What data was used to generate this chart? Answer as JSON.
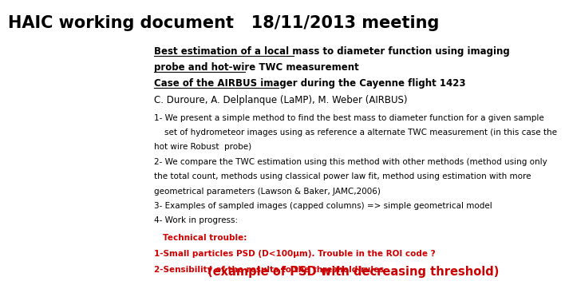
{
  "title": "HAIC working document   18/11/2013 meeting",
  "title_fontsize": 15,
  "title_weight": "bold",
  "bg_color": "#ffffff",
  "subtitle1_line1": "Best estimation of a local mass to diameter function using imaging",
  "subtitle1_line2": "probe and hot-wire TWC measurement",
  "subtitle2": "Case of the AIRBUS imager during the Cayenne flight 1423",
  "authors": "C. Duroure, A. Delplanque (LaMP), M. Weber (AIRBUS)",
  "body": [
    "1- We present a simple method to find the best mass to diameter function for a given sample",
    "    set of hydrometeor images using as reference a alternate TWC measurement (in this case the",
    "hot wire Robust  probe)",
    "2- We compare the TWC estimation using this method with other methods (method using only",
    "the total count, methods using classical power law fit, method using estimation with more",
    "geometrical parameters (Lawson & Baker, JAMC,2006)",
    "3- Examples of sampled images (capped columns) => simple geometrical model",
    "4- Work in progress:"
  ],
  "red_title": "Technical trouble:",
  "red_line1": "1-Small particles PSD (D<100μm). Trouble in the ROI code ?",
  "red_line2_normal": "2-Sensibility of the results to the threshold rules ",
  "red_line2_large": "(example of PSD with decreasing threshold)",
  "text_color": "#000000",
  "red_color": "#cc0000",
  "body_fontsize": 7.5,
  "subtitle_fontsize": 8.5,
  "author_fontsize": 8.5,
  "red_fontsize_small": 7.5,
  "red_fontsize_large": 10.5
}
